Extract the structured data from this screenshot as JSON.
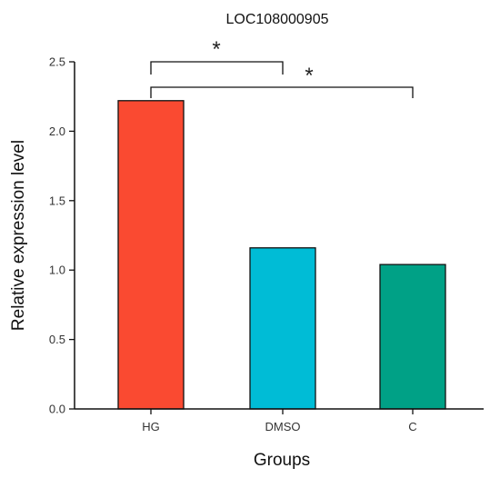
{
  "chart_data": {
    "type": "bar",
    "title": "LOC108000905",
    "xlabel": "Groups",
    "ylabel": "Relative expression level",
    "categories": [
      "HG",
      "DMSO",
      "C"
    ],
    "values": [
      2.22,
      1.16,
      1.04
    ],
    "colors": [
      "#fa4a31",
      "#00bcd6",
      "#00a186"
    ],
    "ylim": [
      0,
      2.5
    ],
    "yticks": [
      "0.0",
      "0.5",
      "1.0",
      "1.5",
      "2.0",
      "2.5"
    ],
    "grid": false,
    "legend": "none",
    "significance": [
      {
        "from": "HG",
        "to": "DMSO",
        "label": "*"
      },
      {
        "from": "HG",
        "to": "C",
        "label": "*"
      }
    ]
  }
}
